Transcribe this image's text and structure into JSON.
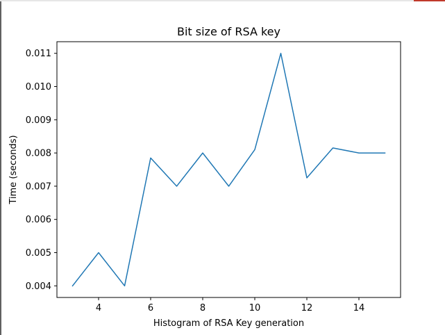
{
  "chart_data": {
    "type": "line",
    "title": "Bit size of RSA key",
    "xlabel": "Histogram of RSA Key generation",
    "ylabel": "Time (seconds)",
    "xlim": [
      2.4,
      15.6
    ],
    "ylim": [
      0.00365,
      0.01135
    ],
    "xticks": [
      4,
      6,
      8,
      10,
      12,
      14
    ],
    "xtick_labels": [
      "4",
      "6",
      "8",
      "10",
      "12",
      "14"
    ],
    "yticks": [
      0.004,
      0.005,
      0.006,
      0.007,
      0.008,
      0.009,
      0.01,
      0.011
    ],
    "ytick_labels": [
      "0.004",
      "0.005",
      "0.006",
      "0.007",
      "0.008",
      "0.009",
      "0.010",
      "0.011"
    ],
    "grid": false,
    "series": [
      {
        "color": "#1f77b4",
        "x": [
          3,
          4,
          5,
          6,
          7,
          8,
          9,
          10,
          11,
          12,
          13,
          14,
          15
        ],
        "y": [
          0.004,
          0.005,
          0.004,
          0.00785,
          0.007,
          0.008,
          0.007,
          0.0081,
          0.011,
          0.00725,
          0.00815,
          0.008,
          0.008
        ]
      }
    ]
  }
}
